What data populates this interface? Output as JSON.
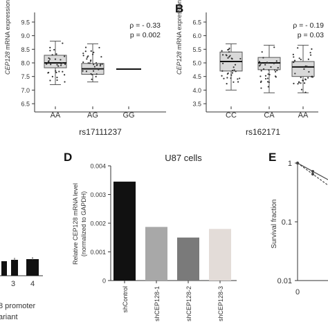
{
  "panels": {
    "b": "B",
    "d": "D",
    "e": "E"
  },
  "chart_data": [
    {
      "id": "A",
      "type": "box",
      "ylabel_italic": "CEP128",
      "ylabel_rest": " mRNA expression",
      "xlabel": "rs17111237",
      "categories": [
        "AA",
        "AG",
        "GG"
      ],
      "yticks": [
        "9.5",
        "9.0",
        "8.5",
        "8.0",
        "7.5",
        "7.0",
        "6.5"
      ],
      "ylim": [
        6.4,
        9.6
      ],
      "boxes": [
        {
          "q1": 7.82,
          "median": 8.0,
          "q3": 8.28,
          "min": 7.2,
          "max": 8.8
        },
        {
          "q1": 7.58,
          "median": 7.78,
          "q3": 7.98,
          "min": 7.3,
          "max": 8.7
        },
        {
          "line": 7.77
        }
      ],
      "rho_label": "ρ = - 0.33",
      "p_label": "p = 0.002"
    },
    {
      "id": "B",
      "type": "box",
      "ylabel_italic": "CEP128",
      "ylabel_rest": " mRNA expression",
      "xlabel": "rs162171",
      "categories": [
        "CC",
        "CA",
        "AA"
      ],
      "yticks": [
        "6.5",
        "6.0",
        "5.5",
        "5.0",
        "4.5",
        "4.0",
        "3.5"
      ],
      "ylim": [
        3.4,
        6.6
      ],
      "boxes": [
        {
          "q1": 4.7,
          "median": 5.05,
          "q3": 5.4,
          "min": 4.0,
          "max": 5.7
        },
        {
          "q1": 4.75,
          "median": 5.0,
          "q3": 5.2,
          "min": 3.9,
          "max": 5.65
        },
        {
          "q1": 4.5,
          "median": 4.85,
          "q3": 5.05,
          "min": 3.9,
          "max": 5.65
        }
      ],
      "rho_label": "ρ = - 0.19",
      "p_label": "p = 0.03"
    },
    {
      "id": "D",
      "type": "bar",
      "title": "U87 cells",
      "ylabel_line1": "Relative CEP128 mRNA level",
      "ylabel_line2": "(normalized to GAPDH)",
      "categories": [
        "shControl",
        "shCEP128-1",
        "shCEP128-2",
        "shCEP128-3"
      ],
      "values": [
        0.00345,
        0.00187,
        0.0015,
        0.0018
      ],
      "colors": [
        "#111111",
        "#a8a8a8",
        "#7a7a7a",
        "#e3dcd8"
      ],
      "yticks": [
        "0.004",
        "0.003",
        "0.002",
        "0.001",
        "0"
      ],
      "ylim": [
        0,
        0.004
      ]
    },
    {
      "id": "C",
      "type": "bar",
      "visible_ticks": [
        "3",
        "4"
      ],
      "xlabel_line1": "8 promoter",
      "xlabel_line2": "ariant"
    },
    {
      "id": "E",
      "type": "line",
      "ylabel": "Survival fraction",
      "yticks": [
        "1",
        "0.1",
        "0.01"
      ],
      "xticks": [
        "0"
      ],
      "yscale": "log"
    }
  ]
}
